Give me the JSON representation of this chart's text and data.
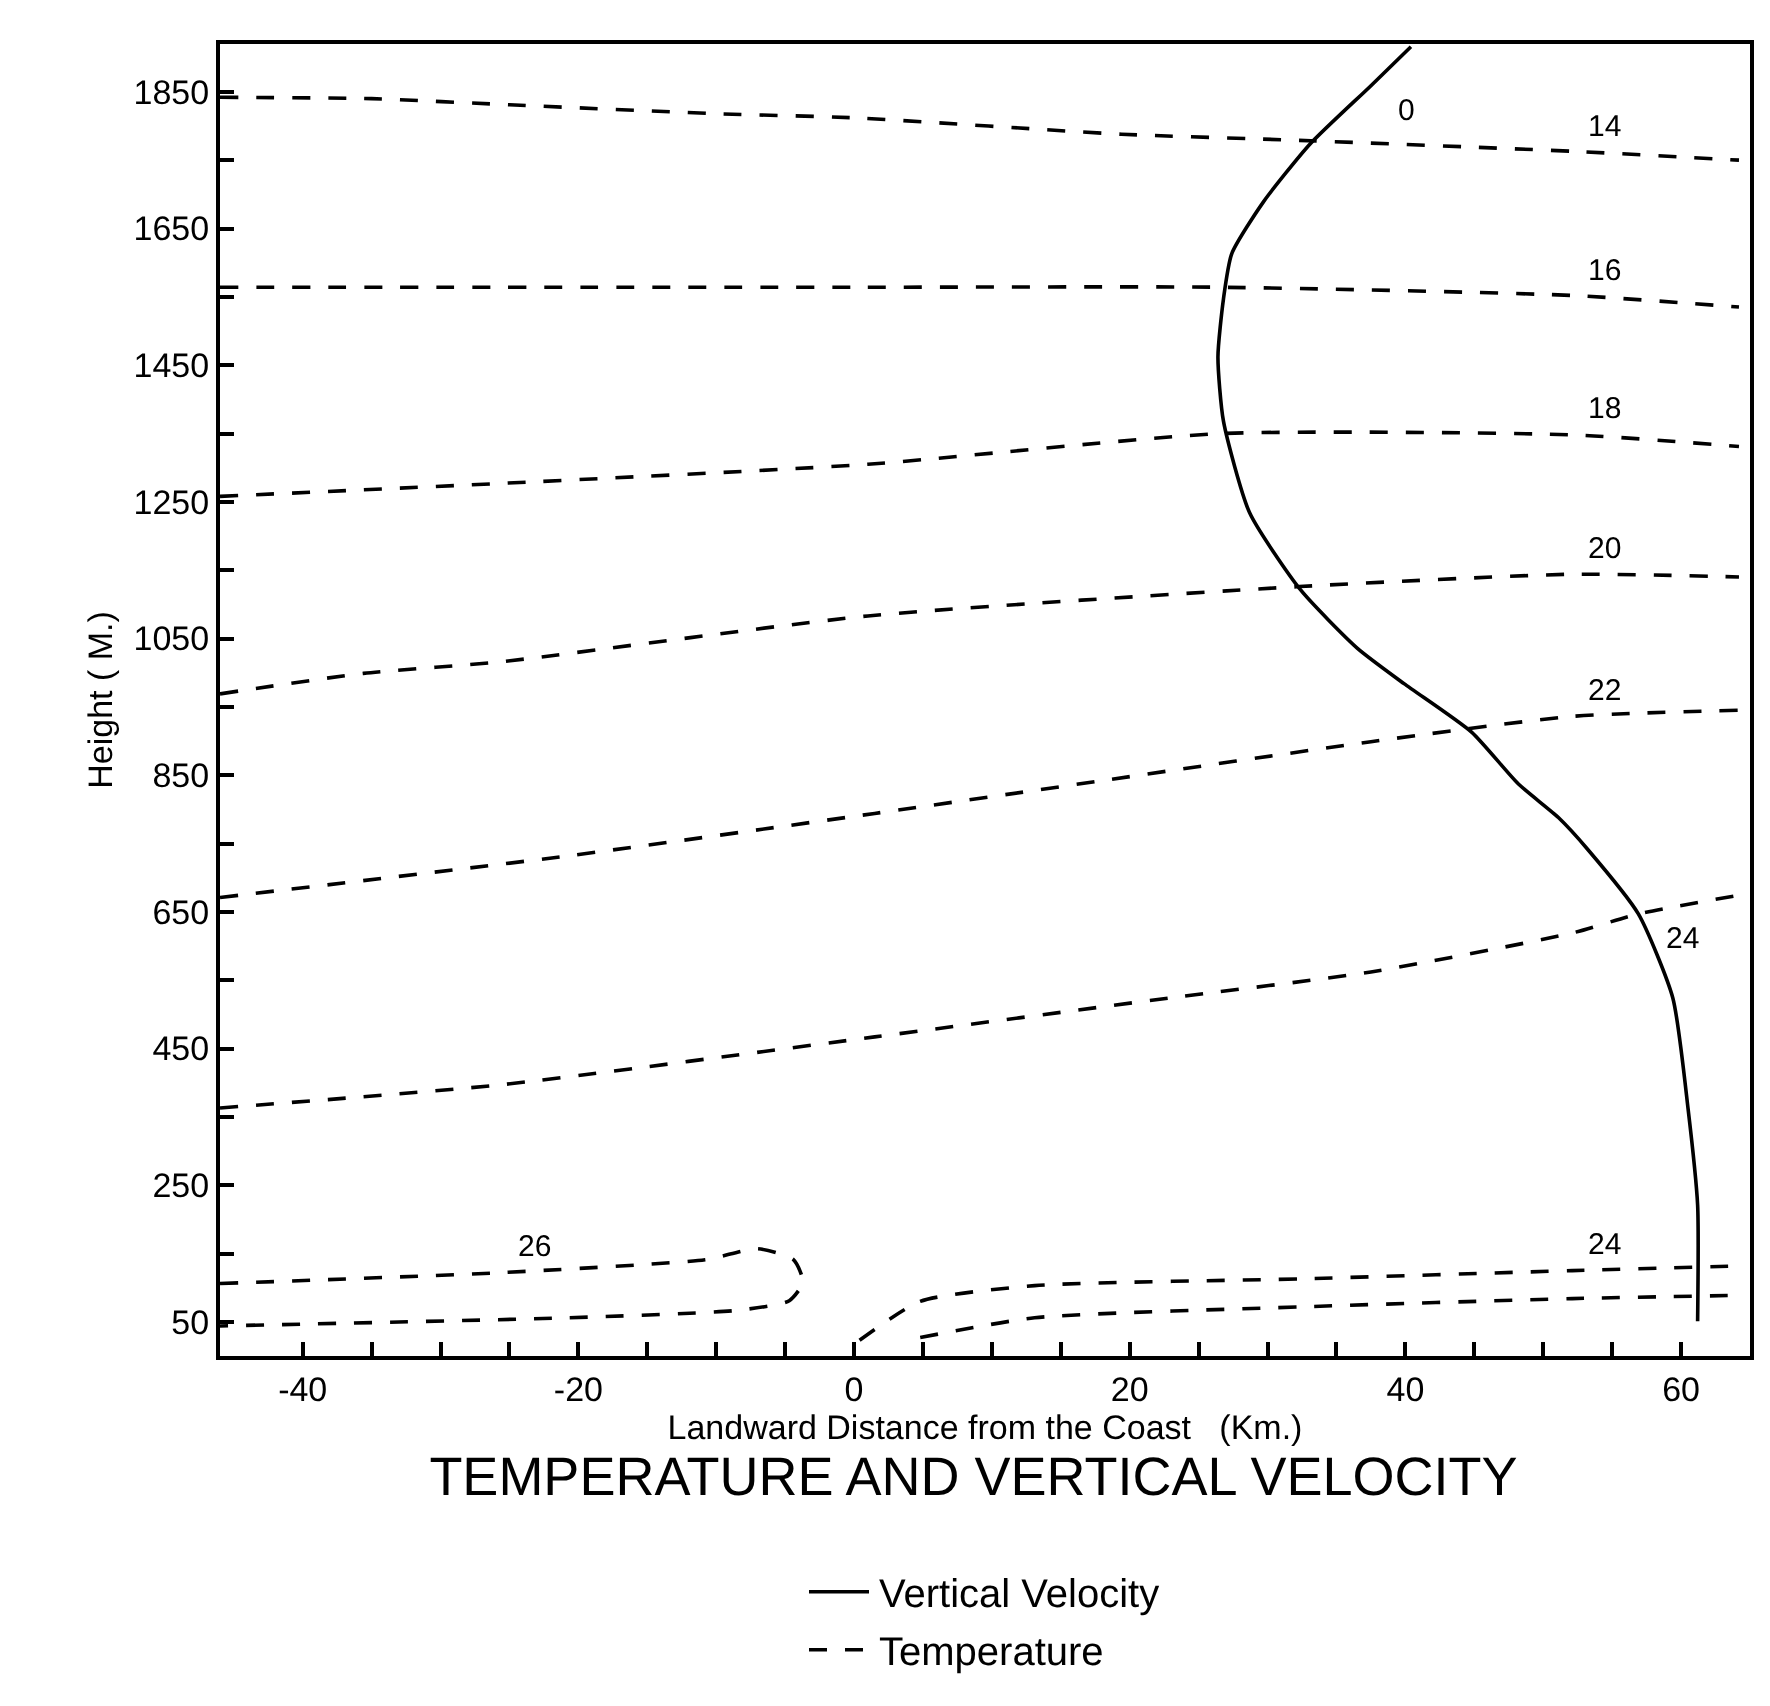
{
  "chart_data": {
    "type": "line",
    "title": "TEMPERATURE AND VERTICAL VELOCITY",
    "xlabel": "Landward Distance from the Coast   (Km.)",
    "ylabel": "Height ( M.)",
    "xlim": [
      -46,
      65
    ],
    "ylim": [
      0,
      1920
    ],
    "xticks": [
      -40,
      {
        "value": -35,
        "label": null
      },
      {
        "value": -30,
        "label": null
      },
      {
        "value": -25,
        "label": null
      },
      -20,
      {
        "value": -15,
        "label": null
      },
      {
        "value": -10,
        "label": null
      },
      {
        "value": -5,
        "label": null
      },
      0,
      {
        "value": 5,
        "label": null
      },
      {
        "value": 10,
        "label": null
      },
      {
        "value": 15,
        "label": null
      },
      20,
      {
        "value": 25,
        "label": null
      },
      {
        "value": 30,
        "label": null
      },
      {
        "value": 35,
        "label": null
      },
      40,
      {
        "value": 45,
        "label": null
      },
      {
        "value": 50,
        "label": null
      },
      {
        "value": 55,
        "label": null
      },
      60
    ],
    "yticks": [
      50,
      {
        "value": 150,
        "label": null
      },
      250,
      {
        "value": 350,
        "label": null
      },
      450,
      {
        "value": 550,
        "label": null
      },
      650,
      {
        "value": 750,
        "label": null
      },
      850,
      {
        "value": 950,
        "label": null
      },
      1050,
      {
        "value": 1150,
        "label": null
      },
      1250,
      {
        "value": 1350,
        "label": null
      },
      1450,
      {
        "value": 1550,
        "label": null
      },
      1650,
      {
        "value": 1750,
        "label": null
      },
      1850
    ],
    "legend": "bottom",
    "marker": "none",
    "series": [
      {
        "name": "Vertical Velocity",
        "color": "#000000",
        "line_style": "solid",
        "x": [
          40.4,
          37.5,
          33.1,
          29.7,
          27.4,
          26.8,
          26.4,
          26.8,
          28.7,
          32.4,
          36.5,
          39.9,
          44.8,
          48.2,
          51.1,
          53.2,
          56.9,
          59.4,
          60.5,
          61.2,
          61.2
        ],
        "values": [
          1916,
          1859,
          1774,
          1689,
          1613,
          1547,
          1462,
          1368,
          1234,
          1121,
          1036,
          984,
          913,
          837,
          788,
          742,
          647,
          524,
          363,
          221,
          51
        ]
      },
      {
        "name": "Temperature",
        "color": "#000000",
        "line_style": "dashed",
        "x": [
          -46,
          -35,
          -25,
          -10,
          0,
          19.4,
          32.3,
          52.1,
          64.2
        ],
        "values": [
          1842,
          1840,
          1831,
          1818,
          1812,
          1788,
          1779,
          1763,
          1750
        ]
      },
      {
        "color": "#000000",
        "line_style": "dashed",
        "x": [
          -46,
          0,
          26.7,
          52.1,
          64.2
        ],
        "values": [
          1564,
          1564,
          1564,
          1552,
          1535
        ]
      },
      {
        "color": "#000000",
        "line_style": "dashed",
        "x": [
          -46,
          -25.6,
          1,
          26.7,
          52.1,
          64.2
        ],
        "values": [
          1258,
          1277,
          1305,
          1350,
          1348,
          1331
        ]
      },
      {
        "color": "#000000",
        "line_style": "dashed",
        "x": [
          -46,
          -35.6,
          -25.6,
          1,
          32.3,
          52.1,
          64.2
        ],
        "values": [
          969,
          999,
          1016,
          1083,
          1126,
          1144,
          1140
        ]
      },
      {
        "color": "#000000",
        "line_style": "dashed",
        "x": [
          -46,
          -20.7,
          1.5,
          18,
          37.5,
          52.1,
          64.2
        ],
        "values": [
          671,
          732,
          794,
          842,
          899,
          936,
          945
        ]
      },
      {
        "color": "#000000",
        "line_style": "dashed",
        "x": [
          -46,
          -25.6,
          1.5,
          22.9,
          37.5,
          52.1,
          56.9,
          64.7
        ],
        "values": [
          363,
          397,
          467,
          524,
          562,
          619,
          647,
          676
        ]
      },
      {
        "color": "#000000",
        "line_style": "dashed",
        "x": [
          -46,
          -25.6,
          -10.8,
          -7,
          -4.4,
          -3.7,
          -4.7,
          -8.4,
          -20.7,
          -46
        ],
        "values": [
          106,
          122,
          141,
          157,
          141,
          108,
          81,
          67,
          56,
          44
        ]
      },
      {
        "color": "#000000",
        "line_style": "dashed",
        "x": [
          0.4,
          4.8,
          13.1,
          32.6,
          52.1,
          64.7
        ],
        "values": [
          23,
          80,
          103,
          113,
          125,
          132
        ]
      },
      {
        "color": "#000000",
        "line_style": "dashed",
        "x": [
          4.8,
          13.1,
          32.6,
          52.1,
          64.7
        ],
        "values": [
          27,
          56,
          72,
          84,
          89
        ]
      }
    ],
    "annotations": [
      {
        "text": "0",
        "x": 37.5,
        "y": 1859
      },
      {
        "text": "14",
        "x": 52.1,
        "y": 1763
      },
      {
        "text": "16",
        "x": 52.1,
        "y": 1552
      },
      {
        "text": "18",
        "x": 52.1,
        "y": 1348
      },
      {
        "text": "20",
        "x": 52.1,
        "y": 1144
      },
      {
        "text": "22",
        "x": 52.1,
        "y": 936
      },
      {
        "text": "24",
        "x": 56.9,
        "y": 647
      },
      {
        "text": "26",
        "x": -25.6,
        "y": 122
      },
      {
        "text": "24",
        "x": 52.1,
        "y": 125
      }
    ]
  }
}
